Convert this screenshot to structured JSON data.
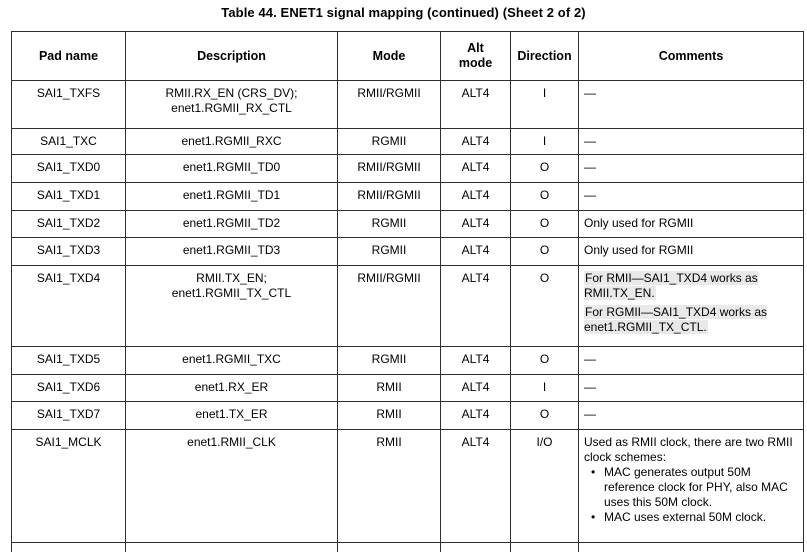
{
  "title": "Table 44. ENET1 signal mapping (continued) (Sheet 2 of 2)",
  "colors": {
    "background": "#ffffff",
    "text": "#000000",
    "border": "#2e2e2e",
    "comment_highlight": "#e9e9e9"
  },
  "table": {
    "headers": [
      "Pad name",
      "Description",
      "Mode",
      "Alt\nmode",
      "Direction",
      "Comments"
    ],
    "rows": [
      {
        "pad": "SAI1_TXFS",
        "description": "RMII.RX_EN (CRS_DV);\nenet1.RGMII_RX_CTL",
        "mode": "RMII/RGMII",
        "alt_mode": "ALT4",
        "direction": "I",
        "comments": [
          {
            "type": "line",
            "text": "—"
          }
        ]
      },
      {
        "pad": "SAI1_TXC",
        "description": "enet1.RGMII_RXC",
        "mode": "RGMII",
        "alt_mode": "ALT4",
        "direction": "I",
        "comments": [
          {
            "type": "line",
            "text": "—"
          }
        ]
      },
      {
        "pad": "SAI1_TXD0",
        "description": "enet1.RGMII_TD0",
        "mode": "RMII/RGMII",
        "alt_mode": "ALT4",
        "direction": "O",
        "comments": [
          {
            "type": "line",
            "text": "—"
          }
        ]
      },
      {
        "pad": "SAI1_TXD1",
        "description": "enet1.RGMII_TD1",
        "mode": "RMII/RGMII",
        "alt_mode": "ALT4",
        "direction": "O",
        "comments": [
          {
            "type": "line",
            "text": "—"
          }
        ]
      },
      {
        "pad": "SAI1_TXD2",
        "description": "enet1.RGMII_TD2",
        "mode": "RGMII",
        "alt_mode": "ALT4",
        "direction": "O",
        "comments": [
          {
            "type": "line",
            "text": "Only used for RGMII"
          }
        ]
      },
      {
        "pad": "SAI1_TXD3",
        "description": "enet1.RGMII_TD3",
        "mode": "RGMII",
        "alt_mode": "ALT4",
        "direction": "O",
        "comments": [
          {
            "type": "line",
            "text": "Only used for RGMII"
          }
        ]
      },
      {
        "pad": "SAI1_TXD4",
        "description": "RMII.TX_EN;\nenet1.RGMII_TX_CTL",
        "mode": "RMII/RGMII",
        "alt_mode": "ALT4",
        "direction": "O",
        "comments": [
          {
            "type": "line",
            "text": "For RMII—SAI1_TXD4 works as RMII.TX_EN.",
            "highlight": true
          },
          {
            "type": "line",
            "text": "For RGMII—SAI1_TXD4 works as enet1.RGMII_TX_CTL.",
            "highlight": true
          }
        ]
      },
      {
        "pad": "SAI1_TXD5",
        "description": "enet1.RGMII_TXC",
        "mode": "RGMII",
        "alt_mode": "ALT4",
        "direction": "O",
        "comments": [
          {
            "type": "line",
            "text": "—"
          }
        ]
      },
      {
        "pad": "SAI1_TXD6",
        "description": "enet1.RX_ER",
        "mode": "RMII",
        "alt_mode": "ALT4",
        "direction": "I",
        "comments": [
          {
            "type": "line",
            "text": "—"
          }
        ]
      },
      {
        "pad": "SAI1_TXD7",
        "description": "enet1.TX_ER",
        "mode": "RMII",
        "alt_mode": "ALT4",
        "direction": "O",
        "comments": [
          {
            "type": "line",
            "text": "—"
          }
        ]
      },
      {
        "pad": "SAI1_MCLK",
        "description": "enet1.RMII_CLK",
        "mode": "RMII",
        "alt_mode": "ALT4",
        "direction": "I/O",
        "comments": [
          {
            "type": "line",
            "text": "Used as RMII clock, there are two RMII clock schemes:"
          },
          {
            "type": "bullet",
            "text": "MAC generates output 50M reference clock for PHY, also MAC uses this 50M clock."
          },
          {
            "type": "bullet",
            "text": "MAC uses external 50M clock."
          }
        ]
      }
    ]
  }
}
